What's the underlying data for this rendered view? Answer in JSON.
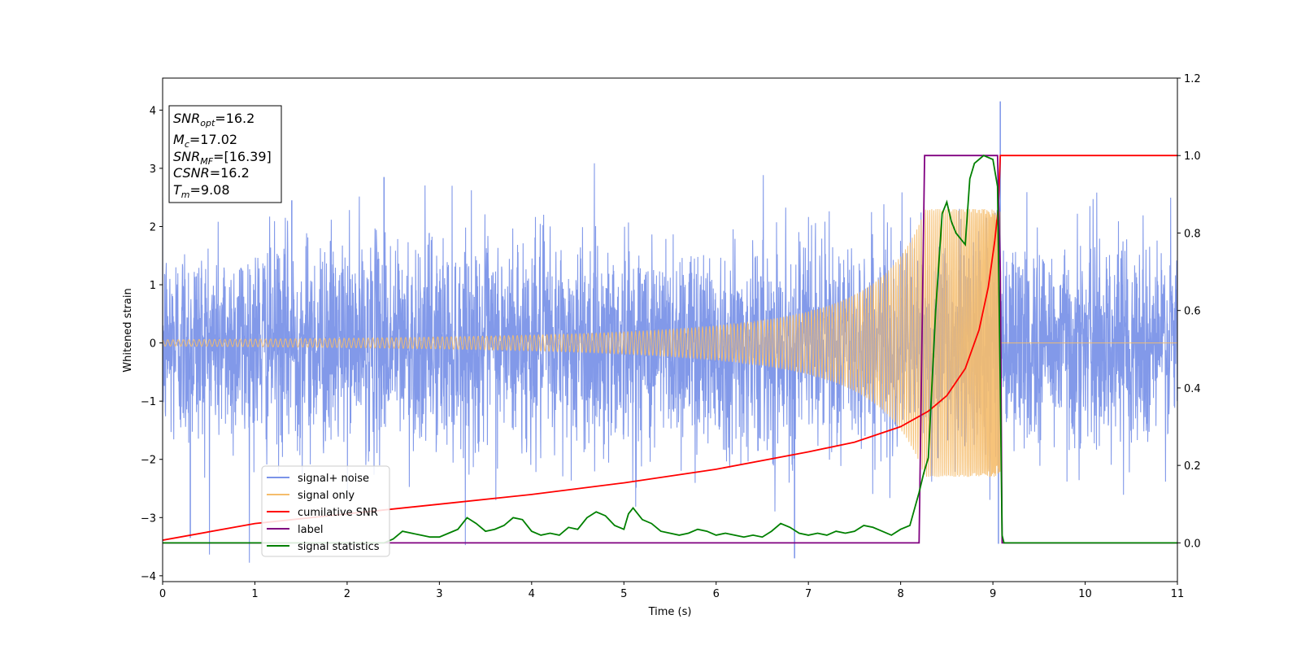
{
  "chart_data": {
    "type": "line",
    "title": "",
    "xlabel": "Time (s)",
    "ylabel": "Whitened strain",
    "xlim": [
      0,
      11
    ],
    "ylim": [
      -4.1,
      4.55
    ],
    "y2lim": [
      -0.1,
      1.2
    ],
    "x_ticks": [
      "0",
      "1",
      "2",
      "3",
      "4",
      "5",
      "6",
      "7",
      "8",
      "9",
      "10",
      "11"
    ],
    "y_ticks": [
      "−4",
      "−3",
      "−2",
      "−1",
      "0",
      "1",
      "2",
      "3",
      "4"
    ],
    "y2_ticks": [
      "0.0",
      "0.2",
      "0.4",
      "0.6",
      "0.8",
      "1.0",
      "1.2"
    ],
    "grid": false,
    "legend_position": "lower-left",
    "annotation": {
      "lines": [
        {
          "main": "SNR",
          "sub": "opt",
          "rest": "=16.2"
        },
        {
          "main": "M",
          "sub": "c",
          "rest": "=17.02"
        },
        {
          "main": "SNR",
          "sub": "MF",
          "rest": "=[16.39]"
        },
        {
          "main": "CSNR",
          "sub": "",
          "rest": "=16.2"
        },
        {
          "main": "T",
          "sub": "m",
          "rest": "=9.08"
        }
      ]
    },
    "series": [
      {
        "name": "signal+ noise",
        "axis": "left",
        "color": "#7b94e8",
        "description": "dense whitened noise, roughly Gaussian, std ~0.9 over 0-11 s; maxima near 4.15 at t=9.08",
        "noise_std": 0.9,
        "spikes": [
          [
            9.08,
            4.15
          ],
          [
            9.06,
            -3.45
          ],
          [
            6.85,
            -3.7
          ],
          [
            0.3,
            -3.35
          ],
          [
            1.4,
            2.45
          ],
          [
            2.4,
            2.85
          ]
        ]
      },
      {
        "name": "signal only",
        "axis": "left",
        "color": "#f5bd6b",
        "description": "chirp oscillation, amplitude growing from ~0.03 to ~2.3, ending at merger t=9.08",
        "t_merger": 9.08,
        "peak_amplitude": 2.3
      },
      {
        "name": "cumilative SNR",
        "axis": "right",
        "color": "#ff0000",
        "x": [
          0,
          1,
          2,
          3,
          4,
          5,
          6,
          7,
          7.5,
          8,
          8.3,
          8.5,
          8.7,
          8.85,
          8.95,
          9.02,
          9.06,
          9.08,
          9.1,
          11
        ],
        "y": [
          0.007,
          0.05,
          0.075,
          0.1,
          0.125,
          0.155,
          0.19,
          0.235,
          0.26,
          0.3,
          0.34,
          0.38,
          0.45,
          0.55,
          0.66,
          0.78,
          0.87,
          1.0,
          1.0,
          1.0
        ]
      },
      {
        "name": "label",
        "axis": "right",
        "color": "#800080",
        "x": [
          0,
          8.2,
          8.26,
          9.05,
          9.08,
          9.1,
          11
        ],
        "y": [
          0,
          0,
          1.0,
          1.0,
          0.7,
          0,
          0
        ]
      },
      {
        "name": "signal statistics",
        "axis": "right",
        "color": "#008000",
        "x": [
          0,
          2.4,
          2.5,
          2.6,
          2.7,
          2.8,
          2.9,
          3.0,
          3.1,
          3.2,
          3.3,
          3.4,
          3.5,
          3.6,
          3.7,
          3.8,
          3.9,
          4.0,
          4.1,
          4.2,
          4.3,
          4.4,
          4.5,
          4.6,
          4.7,
          4.8,
          4.9,
          5.0,
          5.05,
          5.1,
          5.2,
          5.3,
          5.4,
          5.5,
          5.6,
          5.7,
          5.8,
          5.9,
          6.0,
          6.1,
          6.2,
          6.3,
          6.4,
          6.5,
          6.6,
          6.7,
          6.8,
          6.9,
          7.0,
          7.1,
          7.2,
          7.3,
          7.4,
          7.5,
          7.6,
          7.7,
          7.8,
          7.9,
          8.0,
          8.1,
          8.2,
          8.25,
          8.3,
          8.38,
          8.45,
          8.5,
          8.55,
          8.6,
          8.7,
          8.75,
          8.8,
          8.9,
          9.0,
          9.05,
          9.08,
          9.1,
          9.12,
          11
        ],
        "y": [
          0.0,
          0.0,
          0.01,
          0.03,
          0.025,
          0.02,
          0.015,
          0.015,
          0.025,
          0.035,
          0.065,
          0.05,
          0.03,
          0.035,
          0.045,
          0.065,
          0.06,
          0.03,
          0.02,
          0.025,
          0.02,
          0.04,
          0.035,
          0.065,
          0.08,
          0.07,
          0.045,
          0.035,
          0.075,
          0.09,
          0.06,
          0.05,
          0.03,
          0.025,
          0.02,
          0.025,
          0.035,
          0.03,
          0.02,
          0.025,
          0.02,
          0.015,
          0.02,
          0.015,
          0.03,
          0.05,
          0.04,
          0.025,
          0.02,
          0.025,
          0.02,
          0.03,
          0.025,
          0.03,
          0.045,
          0.04,
          0.03,
          0.02,
          0.035,
          0.045,
          0.13,
          0.18,
          0.22,
          0.6,
          0.85,
          0.88,
          0.83,
          0.8,
          0.77,
          0.94,
          0.98,
          1.0,
          0.99,
          0.92,
          0.4,
          0.02,
          0.0,
          0.0
        ]
      }
    ]
  }
}
